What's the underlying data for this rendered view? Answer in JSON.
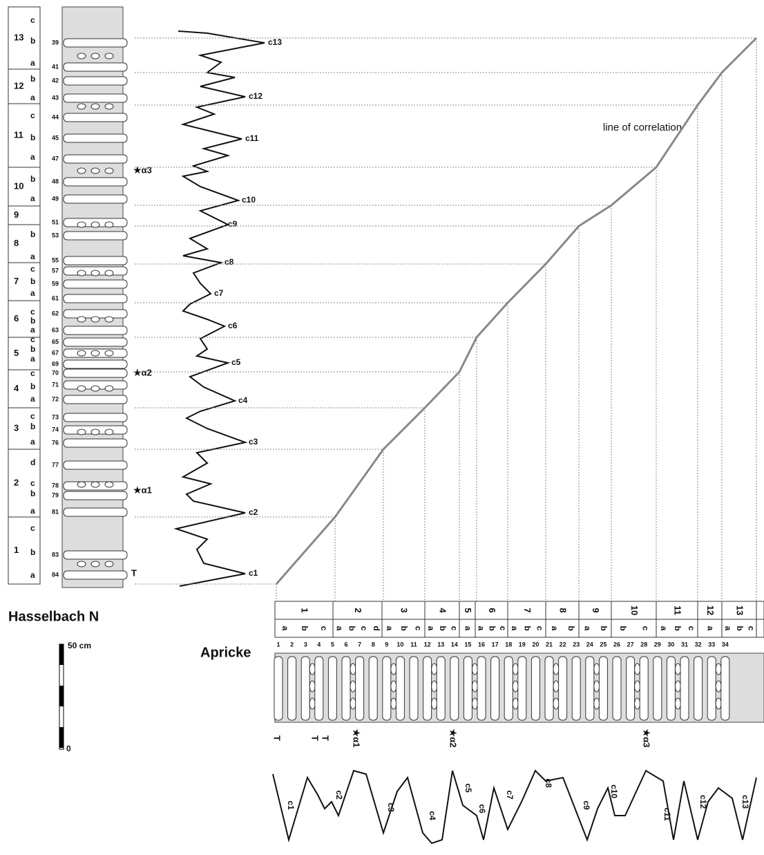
{
  "hasselbach": {
    "title": "Hasselbach N",
    "units": [
      {
        "label": "13",
        "subunits": [
          "c",
          "b",
          "a"
        ]
      },
      {
        "label": "12",
        "subunits": [
          "b",
          "a"
        ]
      },
      {
        "label": "11",
        "subunits": [
          "c",
          "b",
          "a"
        ]
      },
      {
        "label": "10",
        "subunits": [
          "b",
          "a"
        ]
      },
      {
        "label": "9"
      },
      {
        "label": "8",
        "subunits": [
          "b",
          "a"
        ]
      },
      {
        "label": "7",
        "subunits": [
          "c",
          "b",
          "a"
        ]
      },
      {
        "label": "6",
        "subunits": [
          "c",
          "b",
          "a"
        ]
      },
      {
        "label": "5",
        "subunits": [
          "c",
          "b",
          "a"
        ]
      },
      {
        "label": "4",
        "subunits": [
          "c",
          "b",
          "a"
        ]
      },
      {
        "label": "3",
        "subunits": [
          "c",
          "b",
          "a"
        ]
      },
      {
        "label": "2",
        "subunits": [
          "d",
          "c",
          "b",
          "a"
        ]
      },
      {
        "label": "1",
        "subunits": [
          "c",
          "b",
          "a"
        ]
      }
    ],
    "beds": [
      "39",
      "41",
      "42",
      "43",
      "44",
      "45",
      "47",
      "48",
      "49",
      "51",
      "53",
      "55",
      "57",
      "59",
      "61",
      "62",
      "63",
      "65",
      "67",
      "69",
      "70",
      "71",
      "72",
      "73",
      "74",
      "76",
      "77",
      "78",
      "79",
      "81",
      "83",
      "84"
    ],
    "cycles": [
      "c13",
      "c12",
      "c11",
      "c10",
      "c9",
      "c8",
      "c7",
      "c6",
      "c5",
      "c4",
      "c3",
      "c2",
      "c1"
    ],
    "markers": [
      "★α3",
      "★α2",
      "★α1"
    ],
    "base": "T"
  },
  "correlation_label": "line of correlation",
  "scale": {
    "label": "50 cm",
    "zero": "0"
  },
  "apricke": {
    "title": "Apricke",
    "units": [
      {
        "label": "1",
        "subunits": [
          "a",
          "b",
          "c"
        ]
      },
      {
        "label": "2",
        "subunits": [
          "a",
          "b",
          "c",
          "d"
        ]
      },
      {
        "label": "3",
        "subunits": [
          "a",
          "b",
          "c"
        ]
      },
      {
        "label": "4",
        "subunits": [
          "a",
          "b",
          "c"
        ]
      },
      {
        "label": "5",
        "subunits": [
          "a"
        ]
      },
      {
        "label": "6",
        "subunits": [
          "a",
          "b",
          "c"
        ]
      },
      {
        "label": "7",
        "subunits": [
          "a",
          "b",
          "c"
        ]
      },
      {
        "label": "8",
        "subunits": [
          "a",
          "b"
        ]
      },
      {
        "label": "9",
        "subunits": [
          "a",
          "b"
        ]
      },
      {
        "label": "10",
        "subunits": [
          "b",
          "c"
        ]
      },
      {
        "label": "11",
        "subunits": [
          "a",
          "b",
          "c"
        ]
      },
      {
        "label": "12",
        "subunits": [
          "a"
        ]
      },
      {
        "label": "13",
        "subunits": [
          "a",
          "b",
          "c"
        ]
      }
    ],
    "beds": [
      "1",
      "2",
      "3",
      "4",
      "5",
      "6",
      "7",
      "8",
      "9",
      "10",
      "11",
      "12",
      "13",
      "14",
      "15",
      "16",
      "17",
      "18",
      "19",
      "20",
      "21",
      "22",
      "23",
      "24",
      "25",
      "26",
      "27",
      "28",
      "29",
      "30",
      "31",
      "32",
      "33",
      "34"
    ],
    "markers": [
      "T",
      "T",
      "T",
      "★α1",
      "★α2",
      "★α3"
    ],
    "cycles": [
      "c1",
      "c2",
      "c3",
      "c4",
      "c5",
      "c6",
      "c7",
      "c8",
      "c9",
      "c10",
      "c11",
      "c12",
      "c13"
    ]
  }
}
